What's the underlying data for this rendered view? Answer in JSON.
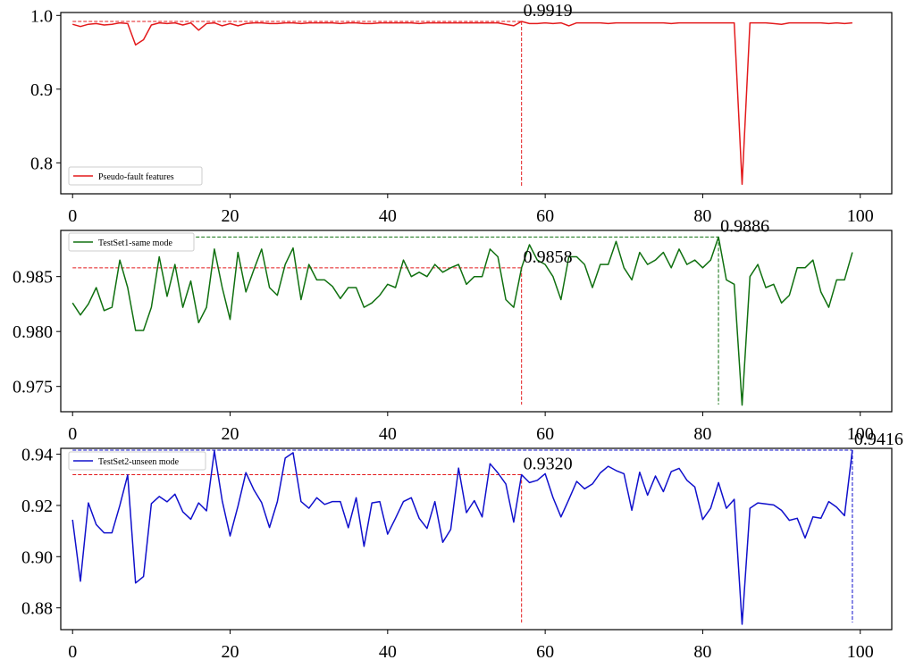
{
  "chart_data": [
    {
      "type": "line",
      "xlim": [
        -1.5,
        104
      ],
      "ylim": [
        0.758,
        1.004
      ],
      "xticks": [
        0,
        20,
        40,
        60,
        80,
        100
      ],
      "yticks": [
        0.8,
        0.9,
        1.0
      ],
      "ytick_labels": [
        "0.8",
        "0.9",
        "1.0"
      ],
      "legend": {
        "label": "Pseudo-fault features",
        "location": "lower left"
      },
      "series": [
        {
          "name": "Pseudo-fault features",
          "color": "#e31a1c",
          "x": [
            0,
            1,
            2,
            3,
            4,
            5,
            6,
            7,
            8,
            9,
            10,
            11,
            12,
            13,
            14,
            15,
            16,
            17,
            18,
            19,
            20,
            21,
            22,
            23,
            24,
            25,
            26,
            27,
            28,
            29,
            30,
            31,
            32,
            33,
            34,
            35,
            36,
            37,
            38,
            39,
            40,
            41,
            42,
            43,
            44,
            45,
            46,
            47,
            48,
            49,
            50,
            51,
            52,
            53,
            54,
            55,
            56,
            57,
            58,
            59,
            60,
            61,
            62,
            63,
            64,
            65,
            66,
            67,
            68,
            69,
            70,
            71,
            72,
            73,
            74,
            75,
            76,
            77,
            78,
            79,
            80,
            81,
            82,
            83,
            84,
            85,
            86,
            87,
            88,
            89,
            90,
            91,
            92,
            93,
            94,
            95,
            96,
            97,
            98,
            99
          ],
          "y": [
            0.988,
            0.985,
            0.988,
            0.989,
            0.987,
            0.988,
            0.99,
            0.989,
            0.96,
            0.967,
            0.987,
            0.99,
            0.989,
            0.99,
            0.987,
            0.99,
            0.98,
            0.989,
            0.99,
            0.986,
            0.989,
            0.986,
            0.989,
            0.99,
            0.99,
            0.989,
            0.989,
            0.99,
            0.99,
            0.989,
            0.99,
            0.99,
            0.99,
            0.99,
            0.989,
            0.99,
            0.99,
            0.989,
            0.989,
            0.99,
            0.99,
            0.99,
            0.99,
            0.99,
            0.989,
            0.99,
            0.99,
            0.99,
            0.99,
            0.99,
            0.99,
            0.99,
            0.99,
            0.99,
            0.99,
            0.988,
            0.986,
            0.9919,
            0.989,
            0.989,
            0.99,
            0.989,
            0.99,
            0.986,
            0.99,
            0.99,
            0.99,
            0.99,
            0.989,
            0.99,
            0.99,
            0.99,
            0.99,
            0.99,
            0.99,
            0.99,
            0.989,
            0.99,
            0.99,
            0.99,
            0.99,
            0.99,
            0.99,
            0.99,
            0.99,
            0.771,
            0.99,
            0.99,
            0.99,
            0.989,
            0.988,
            0.99,
            0.99,
            0.99,
            0.99,
            0.99,
            0.989,
            0.99,
            0.989,
            0.99
          ]
        }
      ],
      "reference_lines": [
        {
          "x": 57,
          "y": 0.9919,
          "color": "#e31a1c"
        }
      ],
      "annotations": [
        {
          "text": "0.9919",
          "x": 57,
          "y": 0.9919
        }
      ]
    },
    {
      "type": "line",
      "xlim": [
        -1.5,
        104
      ],
      "ylim": [
        0.9727,
        0.9892
      ],
      "xticks": [
        0,
        20,
        40,
        60,
        80,
        100
      ],
      "yticks": [
        0.975,
        0.98,
        0.985
      ],
      "ytick_labels": [
        "0.975",
        "0.980",
        "0.985"
      ],
      "legend": {
        "label": "TestSet1-same mode",
        "location": "upper left"
      },
      "series": [
        {
          "name": "TestSet1-same mode",
          "color": "#107010",
          "x": [
            0,
            1,
            2,
            3,
            4,
            5,
            6,
            7,
            8,
            9,
            10,
            11,
            12,
            13,
            14,
            15,
            16,
            17,
            18,
            19,
            20,
            21,
            22,
            23,
            24,
            25,
            26,
            27,
            28,
            29,
            30,
            31,
            32,
            33,
            34,
            35,
            36,
            37,
            38,
            39,
            40,
            41,
            42,
            43,
            44,
            45,
            46,
            47,
            48,
            49,
            50,
            51,
            52,
            53,
            54,
            55,
            56,
            57,
            58,
            59,
            60,
            61,
            62,
            63,
            64,
            65,
            66,
            67,
            68,
            69,
            70,
            71,
            72,
            73,
            74,
            75,
            76,
            77,
            78,
            79,
            80,
            81,
            82,
            83,
            84,
            85,
            86,
            87,
            88,
            89,
            90,
            91,
            92,
            93,
            94,
            95,
            96,
            97,
            98,
            99
          ],
          "y": [
            0.9826,
            0.9815,
            0.9825,
            0.984,
            0.9819,
            0.9822,
            0.9865,
            0.984,
            0.9801,
            0.9801,
            0.9822,
            0.9868,
            0.9832,
            0.9861,
            0.9822,
            0.9846,
            0.9808,
            0.9822,
            0.9875,
            0.984,
            0.9811,
            0.9872,
            0.9836,
            0.9856,
            0.9875,
            0.984,
            0.9833,
            0.9861,
            0.9876,
            0.9829,
            0.9861,
            0.9847,
            0.9847,
            0.9841,
            0.983,
            0.984,
            0.984,
            0.9822,
            0.9826,
            0.9833,
            0.9843,
            0.984,
            0.9865,
            0.985,
            0.9854,
            0.985,
            0.9861,
            0.9854,
            0.9858,
            0.9861,
            0.9843,
            0.985,
            0.985,
            0.9875,
            0.9868,
            0.9829,
            0.9822,
            0.9858,
            0.9879,
            0.9865,
            0.9861,
            0.985,
            0.9829,
            0.9868,
            0.9868,
            0.9861,
            0.984,
            0.9861,
            0.9861,
            0.9882,
            0.9858,
            0.9847,
            0.9872,
            0.9861,
            0.9865,
            0.9872,
            0.9858,
            0.9875,
            0.9861,
            0.9865,
            0.9858,
            0.9865,
            0.9886,
            0.9847,
            0.9843,
            0.9733,
            0.985,
            0.9861,
            0.984,
            0.9843,
            0.9826,
            0.9833,
            0.9858,
            0.9858,
            0.9865,
            0.9836,
            0.9822,
            0.9847,
            0.9847,
            0.9872
          ]
        }
      ],
      "reference_lines": [
        {
          "x": 57,
          "y": 0.9858,
          "color": "#e31a1c"
        },
        {
          "x": 82,
          "y": 0.9886,
          "color": "#107010"
        }
      ],
      "annotations": [
        {
          "text": "0.9858",
          "x": 57,
          "y": 0.9858
        },
        {
          "text": "0.9886",
          "x": 82,
          "y": 0.9886
        }
      ]
    },
    {
      "type": "line",
      "xlim": [
        -1.5,
        104
      ],
      "ylim": [
        0.8715,
        0.9423
      ],
      "xticks": [
        0,
        20,
        40,
        60,
        80,
        100
      ],
      "yticks": [
        0.88,
        0.9,
        0.92,
        0.94
      ],
      "ytick_labels": [
        "0.88",
        "0.90",
        "0.92",
        "0.94"
      ],
      "legend": {
        "label": "TestSet2-unseen mode",
        "location": "upper left"
      },
      "series": [
        {
          "name": "TestSet2-unseen mode",
          "color": "#1010cc",
          "x": [
            0,
            1,
            2,
            3,
            4,
            5,
            6,
            7,
            8,
            9,
            10,
            11,
            12,
            13,
            14,
            15,
            16,
            17,
            18,
            19,
            20,
            21,
            22,
            23,
            24,
            25,
            26,
            27,
            28,
            29,
            30,
            31,
            32,
            33,
            34,
            35,
            36,
            37,
            38,
            39,
            40,
            41,
            42,
            43,
            44,
            45,
            46,
            47,
            48,
            49,
            50,
            51,
            52,
            53,
            54,
            55,
            56,
            57,
            58,
            59,
            60,
            61,
            62,
            63,
            64,
            65,
            66,
            67,
            68,
            69,
            70,
            71,
            72,
            73,
            74,
            75,
            76,
            77,
            78,
            79,
            80,
            81,
            82,
            83,
            84,
            85,
            86,
            87,
            88,
            89,
            90,
            91,
            92,
            93,
            94,
            95,
            96,
            97,
            98,
            99
          ],
          "y": [
            0.9144,
            0.8904,
            0.921,
            0.9125,
            0.9093,
            0.9093,
            0.92,
            0.9319,
            0.8897,
            0.8922,
            0.9207,
            0.9235,
            0.9214,
            0.9244,
            0.9175,
            0.9146,
            0.921,
            0.9179,
            0.9413,
            0.9218,
            0.9081,
            0.9197,
            0.9328,
            0.9262,
            0.9211,
            0.9114,
            0.9215,
            0.9385,
            0.9406,
            0.9215,
            0.9189,
            0.923,
            0.9204,
            0.9215,
            0.9215,
            0.9113,
            0.923,
            0.904,
            0.921,
            0.9215,
            0.9088,
            0.915,
            0.9215,
            0.923,
            0.915,
            0.911,
            0.9215,
            0.9056,
            0.9106,
            0.9346,
            0.9172,
            0.9219,
            0.9155,
            0.9363,
            0.9327,
            0.9284,
            0.9135,
            0.932,
            0.9289,
            0.9298,
            0.9324,
            0.9231,
            0.9155,
            0.9223,
            0.9294,
            0.9265,
            0.9284,
            0.9327,
            0.9353,
            0.9336,
            0.9324,
            0.9181,
            0.933,
            0.924,
            0.9315,
            0.9254,
            0.9332,
            0.9345,
            0.9298,
            0.9272,
            0.9145,
            0.9189,
            0.9289,
            0.9189,
            0.9224,
            0.8736,
            0.9189,
            0.921,
            0.9206,
            0.9202,
            0.9181,
            0.9142,
            0.915,
            0.9073,
            0.9155,
            0.915,
            0.9215,
            0.9193,
            0.916,
            0.9416
          ]
        }
      ],
      "reference_lines": [
        {
          "x": 57,
          "y": 0.932,
          "color": "#e31a1c"
        },
        {
          "x": 99,
          "y": 0.9416,
          "color": "#1010cc"
        }
      ],
      "annotations": [
        {
          "text": "0.9320",
          "x": 57,
          "y": 0.932
        },
        {
          "text": "0.9416",
          "x": 99,
          "y": 0.9416
        }
      ]
    }
  ]
}
